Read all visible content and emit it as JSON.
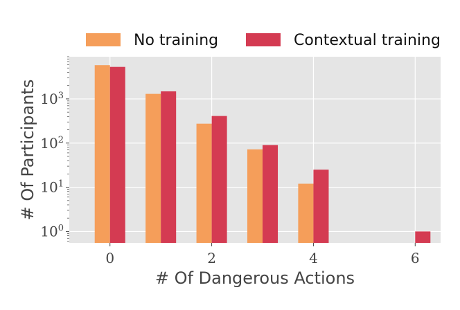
{
  "chart_data": {
    "type": "bar",
    "scale_y": "log",
    "grid": true,
    "legend_placement": "top-center",
    "title": "",
    "xlabel": "# Of Dangerous Actions",
    "ylabel": "# Of Participants",
    "x_ticks": [
      "0",
      "2",
      "4",
      "6"
    ],
    "y_ticks": [
      {
        "base": "10",
        "exp": "0"
      },
      {
        "base": "10",
        "exp": "1"
      },
      {
        "base": "10",
        "exp": "2"
      },
      {
        "base": "10",
        "exp": "3"
      }
    ],
    "categories": [
      0,
      1,
      2,
      3,
      4,
      5,
      6
    ],
    "xlim": [
      -0.8,
      6.5
    ],
    "ylim": [
      0.55,
      9000
    ],
    "series": [
      {
        "name": "No training",
        "color": "#F59E5A",
        "values": [
          5800,
          1300,
          275,
          72,
          12,
          null,
          null
        ]
      },
      {
        "name": "Contextual training",
        "color": "#D43B52",
        "values": [
          5300,
          1480,
          410,
          90,
          25,
          null,
          1
        ]
      }
    ]
  }
}
